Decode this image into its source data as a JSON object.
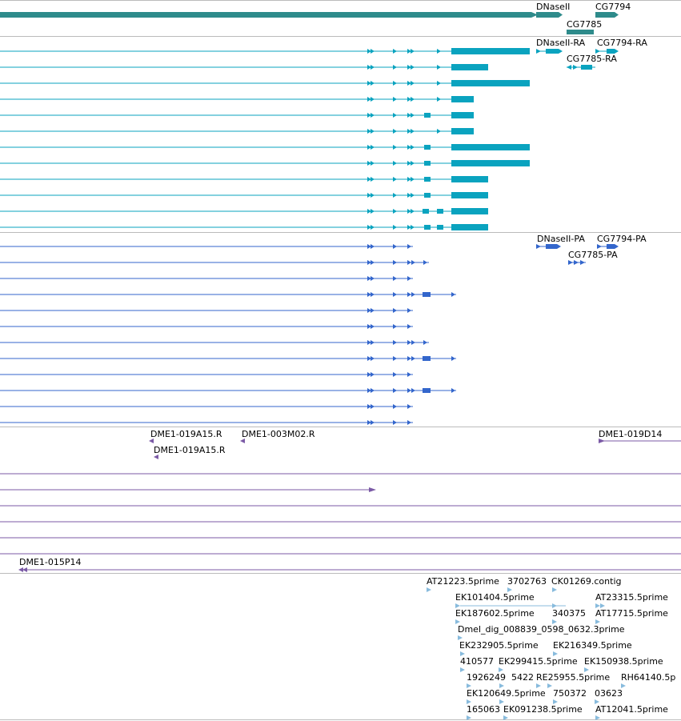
{
  "colors": {
    "gene": "#2e8b8b",
    "mrna": "#0aa3bf",
    "cds": "#3366cc",
    "clone": "#7b5aa6",
    "est": "#88bbdd",
    "separator": "#bbbbbb"
  },
  "tracks": {
    "genes": {
      "labels": [
        "DNaseII",
        "CG7794",
        "CG7785"
      ]
    },
    "mrna": {
      "labels": [
        "DNaseII-RA",
        "CG7794-RA",
        "CG7785-RA"
      ]
    },
    "cds": {
      "labels": [
        "DNaseII-PA",
        "CG7794-PA",
        "CG7785-PA"
      ]
    },
    "clones": {
      "labels": [
        "DME1-019A15.R",
        "DME1-003M02.R",
        "DME1-019A15.R",
        "DME1-019D14",
        "DME1-015P14"
      ]
    },
    "ests": {
      "labels": [
        "AT21223.5prime",
        "3702763",
        "CK01269.contig",
        "EK101404.5prime",
        "AT23315.5prime",
        "EK187602.5prime",
        "340375",
        "AT17715.5prime",
        "Dmel_dig_008839_0598_0632.3prime",
        "EK232905.5prime",
        "EK216349.5prime",
        "410577",
        "EK299415.5prime",
        "EK150938.5prime",
        "1926249",
        "5422",
        "RE25955.5prime",
        "RH64140.5p",
        "EK120649.5prime",
        "750372",
        "03623",
        "165063",
        "EK091238.5prime",
        "AT12041.5prime"
      ]
    }
  }
}
